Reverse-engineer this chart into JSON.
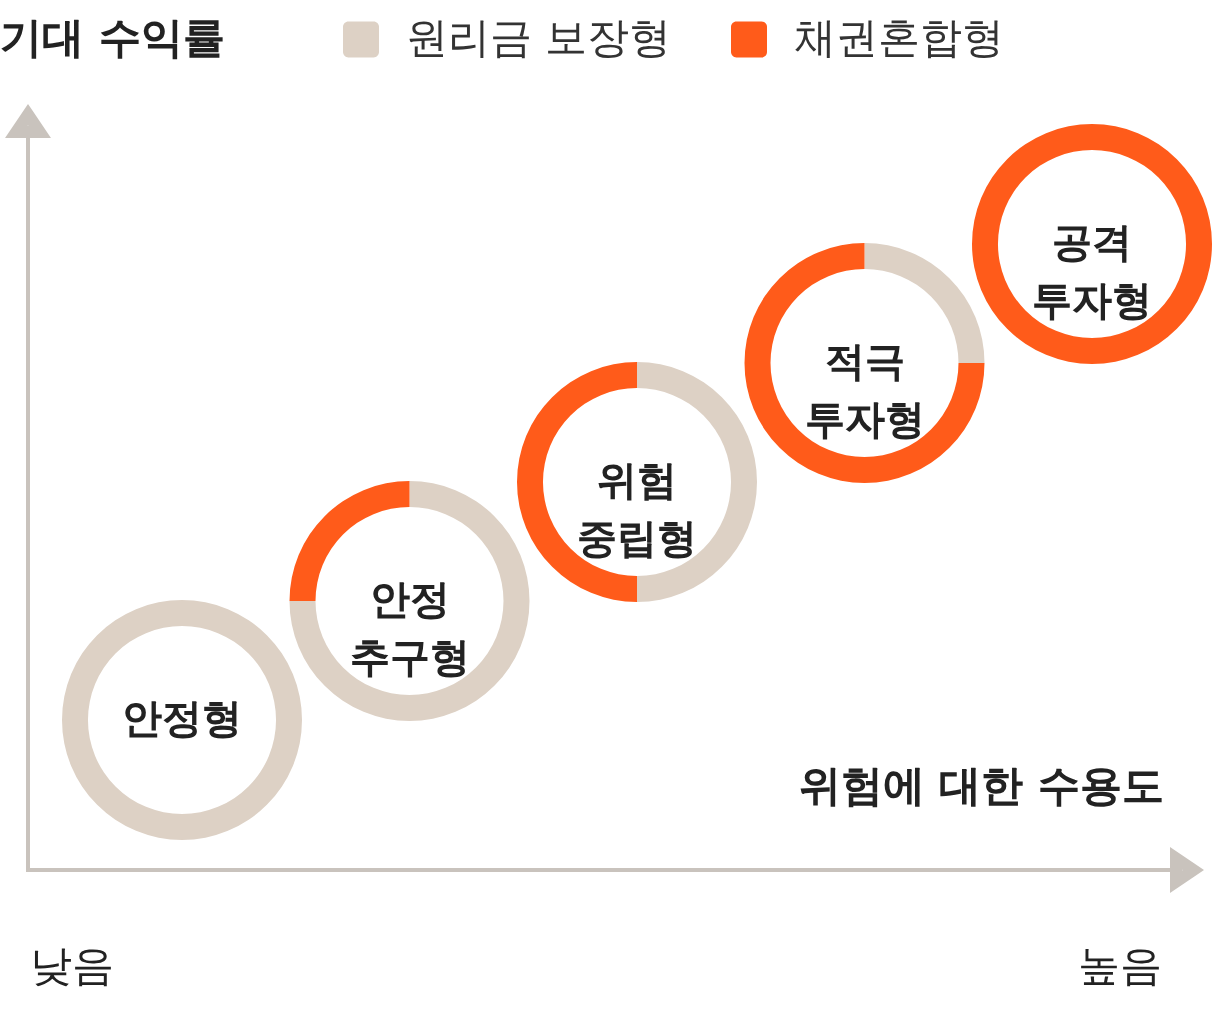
{
  "chart_data": {
    "type": "donut",
    "ylabel": "기대 수익률",
    "xlabel": "위험에 대한 수용도",
    "annotations": [
      "낮음",
      "높음"
    ],
    "categories": [
      "원리금 보장형",
      "채권혼합형"
    ],
    "colors": [
      "#ddd1c5",
      "#ff5b1a"
    ],
    "legend": "top",
    "series": [
      {
        "name": "공격 투자형",
        "values": [
          0,
          100
        ]
      },
      {
        "name": "적극 투자형",
        "values": [
          25,
          75
        ]
      },
      {
        "name": "위험 중립형",
        "values": [
          50,
          50
        ]
      },
      {
        "name": "안정 추구형",
        "values": [
          75,
          25
        ]
      },
      {
        "name": "안정형",
        "values": [
          100,
          0
        ]
      }
    ]
  }
}
